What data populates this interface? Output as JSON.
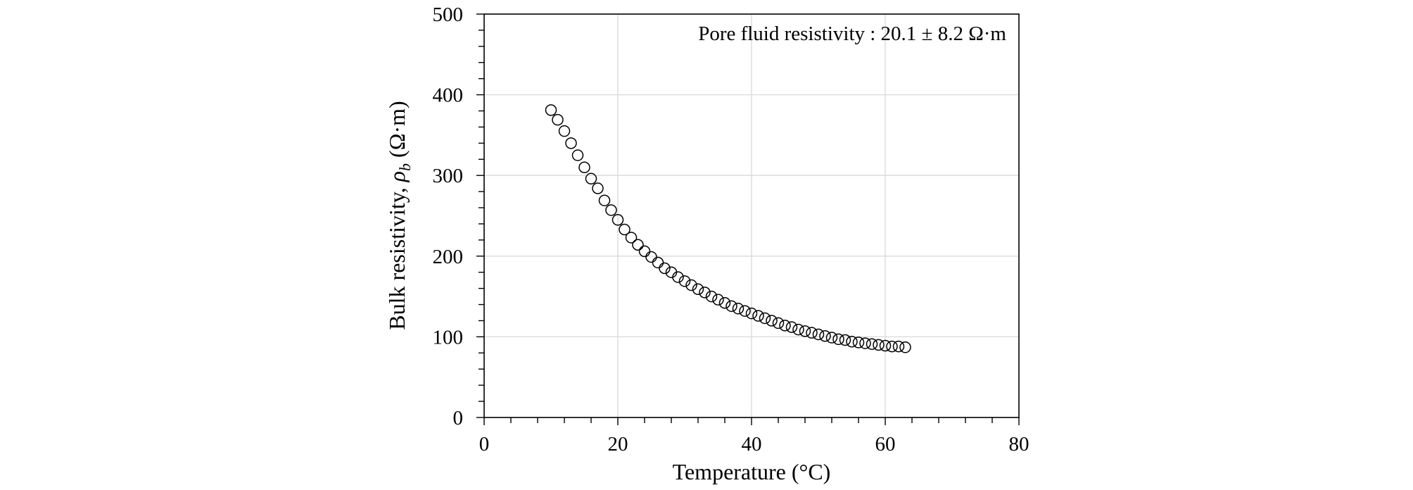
{
  "chart_data": {
    "type": "scatter",
    "xlabel": "Temperature (°C)",
    "ylabel_main": "Bulk resistivity, ",
    "ylabel_symbol": "ρ",
    "ylabel_sub": "b",
    "ylabel_unit": " (Ω·m)",
    "annotation": "Pore fluid resistivity : 20.1 ± 8.2 Ω·m",
    "xlim": [
      0,
      80
    ],
    "ylim": [
      0,
      500
    ],
    "x_ticks": [
      0,
      20,
      40,
      60,
      80
    ],
    "y_ticks": [
      0,
      100,
      200,
      300,
      400,
      500
    ],
    "x_minor_step": 4,
    "y_minor_step": 20,
    "grid": true,
    "marker": "open-circle",
    "series": [
      {
        "x": [
          10,
          11,
          12,
          13,
          14,
          15,
          16,
          17,
          18,
          19,
          20,
          21,
          22,
          23,
          24,
          25,
          26,
          27,
          28,
          29,
          30,
          31,
          32,
          33,
          34,
          35,
          36,
          37,
          38,
          39,
          40,
          41,
          42,
          43,
          44,
          45,
          46,
          47,
          48,
          49,
          50,
          51,
          52,
          53,
          54,
          55,
          56,
          57,
          58,
          59,
          60,
          61,
          62,
          63
        ],
        "y": [
          381,
          369,
          355,
          340,
          325,
          310,
          296,
          284,
          269,
          257,
          245,
          233,
          223,
          214,
          206,
          199,
          192,
          185,
          180,
          174,
          169,
          164,
          159,
          155,
          150,
          146,
          142,
          138,
          135,
          132,
          129,
          126,
          123,
          120,
          117,
          114,
          112,
          109,
          107,
          105,
          103,
          101,
          99,
          97,
          96,
          94,
          93,
          92,
          91,
          90,
          89,
          88,
          88,
          87
        ]
      }
    ]
  }
}
